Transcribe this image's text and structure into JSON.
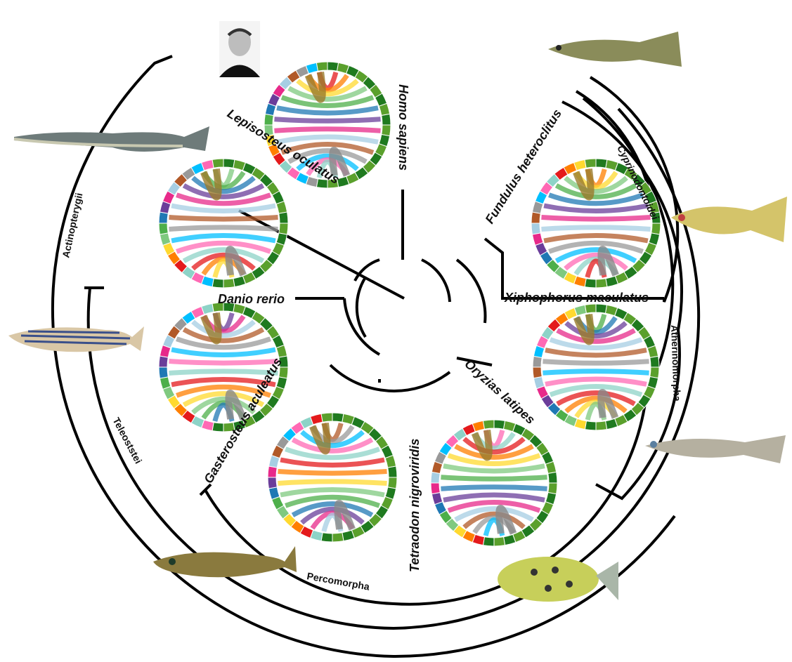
{
  "species": {
    "homo_sapiens": "Homo sapiens",
    "lepisosteus": "Lepisosteus oculatus",
    "danio": "Danio rerio",
    "gasterosteus": "Gasterosteus aculeatus",
    "tetraodon": "Tetraodon nigroviridis",
    "oryzias": "Oryzias latipes",
    "xiphophorus": "Xiphophorus maculatus",
    "fundulus": "Fundulus heteroclitus"
  },
  "clades": {
    "actinopterygii": "Actinopterygii",
    "teleoststei": "Teleoststei",
    "percomorpha": "Percomorpha",
    "atherinomorpha": "Atherinomorpha",
    "cyprinodontoidei": "Cyprinodontoidei"
  },
  "colors": {
    "ring": "#1f7a1f",
    "ring_light": "#5aa02c",
    "tree": "#000000",
    "ribbons": [
      "#e41a1c",
      "#ff7f00",
      "#ffd92f",
      "#7fc97f",
      "#4daf4a",
      "#1f78b4",
      "#6a3d9a",
      "#e7298a",
      "#a6cee3",
      "#b15928",
      "#999999",
      "#00bfff",
      "#ff69b4",
      "#8dd3c7"
    ]
  }
}
